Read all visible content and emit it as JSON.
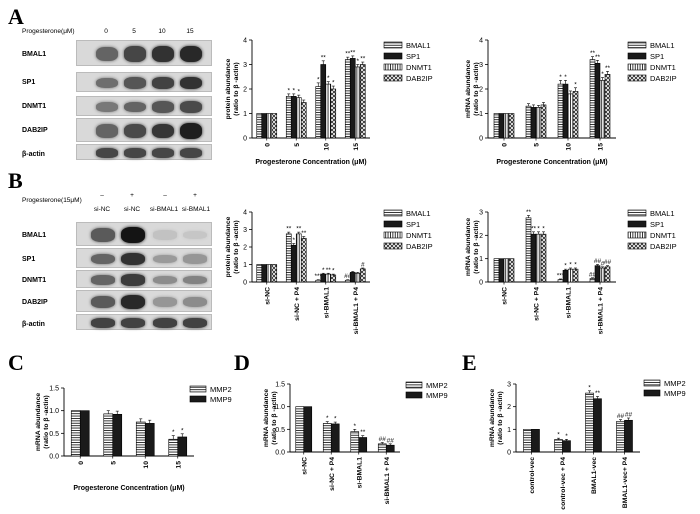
{
  "panel_labels": {
    "A": "A",
    "B": "B",
    "C": "C",
    "D": "D",
    "E": "E"
  },
  "blot_A": {
    "treatment_label": "Progesterone(μM)",
    "lanes": [
      "0",
      "5",
      "10",
      "15"
    ],
    "rows": [
      {
        "label": "BMAL1",
        "intensity": [
          0.55,
          0.7,
          0.8,
          0.85
        ]
      },
      {
        "label": "SP1",
        "intensity": [
          0.5,
          0.62,
          0.72,
          0.8
        ]
      },
      {
        "label": "DNMT1",
        "intensity": [
          0.45,
          0.55,
          0.62,
          0.68
        ]
      },
      {
        "label": "DAB2IP",
        "intensity": [
          0.55,
          0.68,
          0.78,
          0.9
        ]
      },
      {
        "label": "β-actin",
        "intensity": [
          0.7,
          0.7,
          0.7,
          0.7
        ]
      }
    ]
  },
  "blot_B": {
    "treatment_label": "Progesterone(15μM)",
    "signs": [
      "–",
      "+",
      "–",
      "+"
    ],
    "lanes": [
      "si-NC",
      "si-NC",
      "si-BMAL1",
      "si-BMAL1"
    ],
    "rows": [
      {
        "label": "BMAL1",
        "intensity": [
          0.6,
          0.95,
          0.08,
          0.06
        ]
      },
      {
        "label": "SP1",
        "intensity": [
          0.55,
          0.8,
          0.28,
          0.3
        ]
      },
      {
        "label": "DNMT1",
        "intensity": [
          0.55,
          0.75,
          0.35,
          0.4
        ]
      },
      {
        "label": "DAB2IP",
        "intensity": [
          0.6,
          0.85,
          0.3,
          0.35
        ]
      },
      {
        "label": "β-actin",
        "intensity": [
          0.72,
          0.72,
          0.72,
          0.72
        ]
      }
    ]
  },
  "chart_data": [
    {
      "id": "A-protein",
      "type": "bar",
      "categories": [
        "0",
        "5",
        "10",
        "15"
      ],
      "xlabel": "Progesterone Concentration (μM)",
      "ylabel": "protein abundance\n(ratio to β -actin)",
      "ylim": [
        0,
        4
      ],
      "yticks": [
        0,
        1,
        2,
        3,
        4
      ],
      "series": [
        {
          "name": "BMAL1",
          "pattern": "hstripe",
          "values": [
            1,
            1.7,
            2.1,
            3.2
          ],
          "errors": [
            0,
            0.1,
            0.15,
            0.1
          ],
          "marks": [
            "",
            "*",
            "*",
            "**"
          ]
        },
        {
          "name": "SP1",
          "pattern": "solid",
          "values": [
            1,
            1.7,
            3.0,
            3.25
          ],
          "errors": [
            0,
            0.1,
            0.15,
            0.1
          ],
          "marks": [
            "",
            "*",
            "**",
            "**"
          ]
        },
        {
          "name": "DNMT1",
          "pattern": "vstripe",
          "values": [
            1,
            1.65,
            2.2,
            2.9
          ],
          "errors": [
            0,
            0.1,
            0.1,
            0.1
          ],
          "marks": [
            "",
            "*",
            "*",
            "*"
          ]
        },
        {
          "name": "DAB2IP",
          "pattern": "check",
          "values": [
            1,
            1.45,
            2.0,
            3.0
          ],
          "errors": [
            0,
            0.1,
            0.12,
            0.1
          ],
          "marks": [
            "",
            "",
            "*",
            "**"
          ]
        }
      ]
    },
    {
      "id": "A-mrna",
      "type": "bar",
      "categories": [
        "0",
        "5",
        "10",
        "15"
      ],
      "xlabel": "Progesterone Concentration (μM)",
      "ylabel": "mRNA abundance\n(ratio to β -actin)",
      "ylim": [
        0,
        4
      ],
      "yticks": [
        0,
        1,
        2,
        3,
        4
      ],
      "series": [
        {
          "name": "BMAL1",
          "pattern": "hstripe",
          "values": [
            1,
            1.3,
            2.2,
            3.2
          ],
          "errors": [
            0,
            0.1,
            0.15,
            0.12
          ],
          "marks": [
            "",
            "",
            "*",
            "**"
          ]
        },
        {
          "name": "SP1",
          "pattern": "solid",
          "values": [
            1,
            1.25,
            2.2,
            3.05
          ],
          "errors": [
            0,
            0.1,
            0.15,
            0.12
          ],
          "marks": [
            "",
            "",
            "*",
            "**"
          ]
        },
        {
          "name": "DNMT1",
          "pattern": "vstripe",
          "values": [
            1,
            1.25,
            1.8,
            2.35
          ],
          "errors": [
            0,
            0.08,
            0.12,
            0.12
          ],
          "marks": [
            "",
            "",
            "",
            "*"
          ]
        },
        {
          "name": "DAB2IP",
          "pattern": "check",
          "values": [
            1,
            1.35,
            1.9,
            2.6
          ],
          "errors": [
            0,
            0.1,
            0.15,
            0.12
          ],
          "marks": [
            "",
            "",
            "*",
            "**"
          ]
        }
      ]
    },
    {
      "id": "B-protein",
      "type": "bar",
      "categories": [
        "si-NC",
        "si-NC + P4",
        "si-BMAL1",
        "si-BMAL1 + P4"
      ],
      "xlabel": "",
      "ylabel": "protein abundance\n(ratio to β -actin)",
      "ylim": [
        0,
        4
      ],
      "yticks": [
        0,
        1,
        2,
        3,
        4
      ],
      "series": [
        {
          "name": "BMAL1",
          "pattern": "hstripe",
          "values": [
            1,
            2.75,
            0.1,
            0.1
          ],
          "errors": [
            0,
            0.1,
            0.03,
            0.03
          ],
          "marks": [
            "",
            "**",
            "***",
            "##"
          ]
        },
        {
          "name": "SP1",
          "pattern": "solid",
          "values": [
            1,
            2.1,
            0.45,
            0.55
          ],
          "errors": [
            0,
            0.1,
            0.05,
            0.05
          ],
          "marks": [
            "",
            "*",
            "*",
            ""
          ]
        },
        {
          "name": "DNMT1",
          "pattern": "vstripe",
          "values": [
            1,
            2.75,
            0.45,
            0.5
          ],
          "errors": [
            0,
            0.1,
            0.05,
            0.05
          ],
          "marks": [
            "",
            "**",
            "**",
            ""
          ]
        },
        {
          "name": "DAB2IP",
          "pattern": "check",
          "values": [
            1,
            2.5,
            0.4,
            0.75
          ],
          "errors": [
            0,
            0.1,
            0.05,
            0.05
          ],
          "marks": [
            "",
            "**",
            "*",
            "#"
          ]
        }
      ]
    },
    {
      "id": "B-mrna",
      "type": "bar",
      "categories": [
        "si-NC",
        "si-NC + P4",
        "si-BMAL1",
        "si-BMAL1 + P4"
      ],
      "xlabel": "",
      "ylabel": "mRNA abundance\n(ratio to β -actin)",
      "ylim": [
        0,
        3
      ],
      "yticks": [
        0,
        1,
        2,
        3
      ],
      "series": [
        {
          "name": "BMAL1",
          "pattern": "hstripe",
          "values": [
            1,
            2.75,
            0.1,
            0.15
          ],
          "errors": [
            0,
            0.1,
            0.03,
            0.03
          ],
          "marks": [
            "",
            "**",
            "***",
            "##"
          ]
        },
        {
          "name": "SP1",
          "pattern": "solid",
          "values": [
            1,
            2.05,
            0.5,
            0.7
          ],
          "errors": [
            0,
            0.1,
            0.05,
            0.05
          ],
          "marks": [
            "",
            "**",
            "*",
            "##"
          ]
        },
        {
          "name": "DNMT1",
          "pattern": "vstripe",
          "values": [
            1,
            2.05,
            0.55,
            0.6
          ],
          "errors": [
            0,
            0.1,
            0.05,
            0.05
          ],
          "marks": [
            "",
            "*",
            "*",
            "#"
          ]
        },
        {
          "name": "DAB2IP",
          "pattern": "check",
          "values": [
            1,
            2.05,
            0.55,
            0.65
          ],
          "errors": [
            0,
            0.1,
            0.05,
            0.05
          ],
          "marks": [
            "",
            "*",
            "*",
            "##"
          ]
        }
      ]
    },
    {
      "id": "C",
      "type": "bar",
      "categories": [
        "0",
        "5",
        "10",
        "15"
      ],
      "xlabel": "Progesterone Concentration (μM)",
      "ylabel": "mRNA abundance\n(ratio to β -actin)",
      "ylim": [
        0,
        1.5
      ],
      "yticks": [
        0.0,
        0.5,
        1.0,
        1.5
      ],
      "ytick_decimals": 1,
      "series": [
        {
          "name": "MMP2",
          "pattern": "hstripe",
          "values": [
            1.0,
            0.93,
            0.75,
            0.37
          ],
          "errors": [
            0,
            0.07,
            0.07,
            0.08
          ],
          "marks": [
            "",
            "",
            "",
            "*"
          ]
        },
        {
          "name": "MMP9",
          "pattern": "solid",
          "values": [
            1.0,
            0.92,
            0.72,
            0.42
          ],
          "errors": [
            0,
            0.07,
            0.07,
            0.07
          ],
          "marks": [
            "",
            "",
            "",
            "*"
          ]
        }
      ]
    },
    {
      "id": "D",
      "type": "bar",
      "categories": [
        "si-NC",
        "si-NC + P4",
        "si-BMAL1",
        "si-BMAL1 + P4"
      ],
      "xlabel": "",
      "ylabel": "mRNA abundance\n(ratio to β -actin)",
      "ylim": [
        0,
        1.5
      ],
      "yticks": [
        0.0,
        0.5,
        1.0,
        1.5
      ],
      "ytick_decimals": 1,
      "series": [
        {
          "name": "MMP2",
          "pattern": "hstripe",
          "values": [
            1.0,
            0.63,
            0.45,
            0.18
          ],
          "errors": [
            0,
            0.04,
            0.05,
            0.03
          ],
          "marks": [
            "",
            "*",
            "*",
            "##"
          ]
        },
        {
          "name": "MMP9",
          "pattern": "solid",
          "values": [
            1.0,
            0.62,
            0.32,
            0.15
          ],
          "errors": [
            0,
            0.04,
            0.04,
            0.03
          ],
          "marks": [
            "",
            "*",
            "**",
            "##"
          ]
        }
      ]
    },
    {
      "id": "E",
      "type": "bar",
      "categories": [
        "control-vec",
        "control-vec + P4",
        "BMAL1-vec",
        "BMAL1-vec+ P4"
      ],
      "xlabel": "",
      "ylabel": "mRNA abundance\n(ratio to β -actin)",
      "ylim": [
        0,
        3
      ],
      "yticks": [
        0,
        1,
        2,
        3
      ],
      "series": [
        {
          "name": "MMP2",
          "pattern": "hstripe",
          "values": [
            1.0,
            0.55,
            2.6,
            1.35
          ],
          "errors": [
            0,
            0.06,
            0.1,
            0.08
          ],
          "marks": [
            "",
            "*",
            "*",
            "##"
          ]
        },
        {
          "name": "MMP9",
          "pattern": "solid",
          "values": [
            1.0,
            0.5,
            2.35,
            1.4
          ],
          "errors": [
            0,
            0.06,
            0.1,
            0.1
          ],
          "marks": [
            "",
            "*",
            "**",
            "##"
          ]
        }
      ]
    }
  ]
}
